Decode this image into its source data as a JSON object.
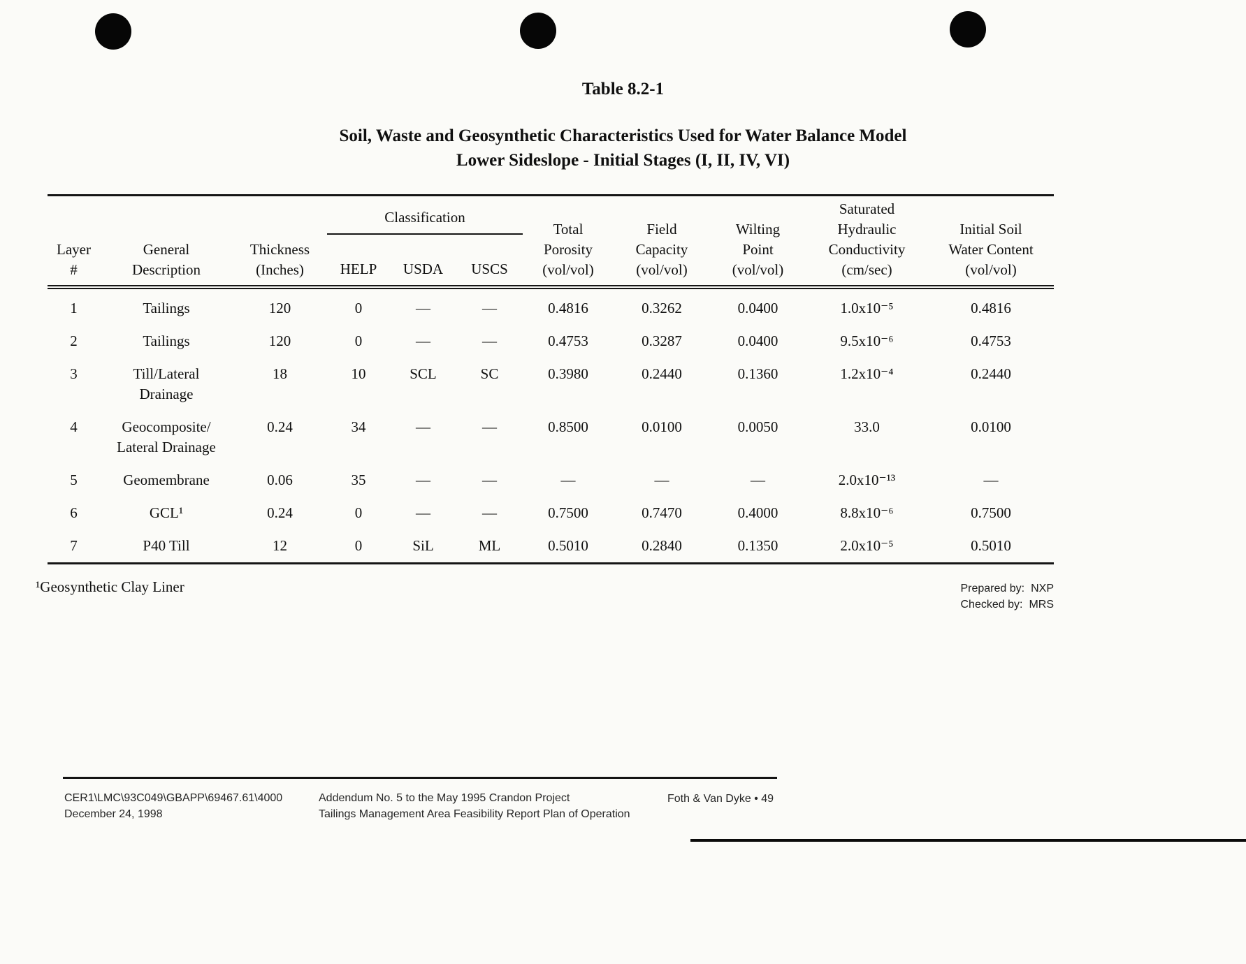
{
  "page": {
    "table_number": "Table 8.2-1",
    "title_line1": "Soil, Waste and Geosynthetic Characteristics Used for Water Balance Model",
    "title_line2": "Lower Sideslope - Initial Stages (I, II, IV, VI)"
  },
  "table": {
    "group_header": "Classification",
    "headers": {
      "layer": "Layer\n#",
      "description": "General\nDescription",
      "thickness": "Thickness\n(Inches)",
      "help": "HELP",
      "usda": "USDA",
      "uscs": "USCS",
      "porosity": "Total\nPorosity\n(vol/vol)",
      "field_capacity": "Field\nCapacity\n(vol/vol)",
      "wilting_point": "Wilting\nPoint\n(vol/vol)",
      "conductivity": "Saturated\nHydraulic\nConductivity\n(cm/sec)",
      "water_content": "Initial Soil\nWater Content\n(vol/vol)"
    },
    "rows": [
      [
        "1",
        "Tailings",
        "120",
        "0",
        "—",
        "—",
        "0.4816",
        "0.3262",
        "0.0400",
        "1.0x10⁻⁵",
        "0.4816"
      ],
      [
        "2",
        "Tailings",
        "120",
        "0",
        "—",
        "—",
        "0.4753",
        "0.3287",
        "0.0400",
        "9.5x10⁻⁶",
        "0.4753"
      ],
      [
        "3",
        "Till/Lateral\nDrainage",
        "18",
        "10",
        "SCL",
        "SC",
        "0.3980",
        "0.2440",
        "0.1360",
        "1.2x10⁻⁴",
        "0.2440"
      ],
      [
        "4",
        "Geocomposite/\nLateral Drainage",
        "0.24",
        "34",
        "—",
        "—",
        "0.8500",
        "0.0100",
        "0.0050",
        "33.0",
        "0.0100"
      ],
      [
        "5",
        "Geomembrane",
        "0.06",
        "35",
        "—",
        "—",
        "—",
        "—",
        "—",
        "2.0x10⁻¹³",
        "—"
      ],
      [
        "6",
        "GCL¹",
        "0.24",
        "0",
        "—",
        "—",
        "0.7500",
        "0.7470",
        "0.4000",
        "8.8x10⁻⁶",
        "0.7500"
      ],
      [
        "7",
        "P40 Till",
        "12",
        "0",
        "SiL",
        "ML",
        "0.5010",
        "0.2840",
        "0.1350",
        "2.0x10⁻⁵",
        "0.5010"
      ]
    ]
  },
  "footnote": "¹Geosynthetic Clay Liner",
  "signoff": {
    "prepared_label": "Prepared by:",
    "prepared_value": "NXP",
    "checked_label": "Checked by:",
    "checked_value": "MRS"
  },
  "footer": {
    "doc_ref": "CER1\\LMC\\93C049\\GBAPP\\69467.61\\4000",
    "date": "December 24, 1998",
    "addendum_line1": "Addendum No. 5 to the May 1995 Crandon Project",
    "addendum_line2": "Tailings Management Area Feasibility Report Plan of Operation",
    "publisher_page": "Foth & Van Dyke • 49"
  }
}
